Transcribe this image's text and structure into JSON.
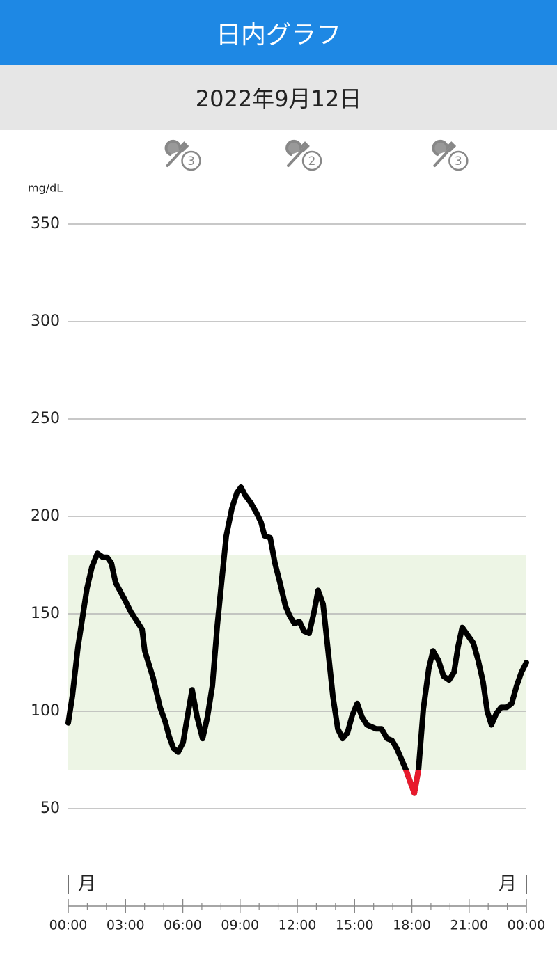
{
  "header": {
    "title": "日内グラフ",
    "date": "2022年9月12日"
  },
  "chart_data": {
    "type": "line",
    "y_label": "mg/dL",
    "x": [
      0,
      0.22,
      0.51,
      0.98,
      1.24,
      1.53,
      1.82,
      2.04,
      2.26,
      2.48,
      2.92,
      3.28,
      3.61,
      3.87,
      4.01,
      4.45,
      4.81,
      5.07,
      5.29,
      5.51,
      5.76,
      6.02,
      6.24,
      6.49,
      6.75,
      7.04,
      7.29,
      7.55,
      7.81,
      8.02,
      8.28,
      8.57,
      8.83,
      9.05,
      9.26,
      9.56,
      9.85,
      10.1,
      10.29,
      10.58,
      10.83,
      11.09,
      11.38,
      11.6,
      11.85,
      12.11,
      12.36,
      12.62,
      12.88,
      13.09,
      13.35,
      13.57,
      13.86,
      14.12,
      14.37,
      14.63,
      14.88,
      15.14,
      15.39,
      15.65,
      16.12,
      16.41,
      16.7,
      16.96,
      17.21,
      17.47,
      17.69,
      17.94,
      18.13,
      18.35,
      18.6,
      18.89,
      19.11,
      19.4,
      19.66,
      19.95,
      20.21,
      20.42,
      20.64,
      20.93,
      21.22,
      21.48,
      21.73,
      21.95,
      22.17,
      22.43,
      22.68,
      22.97,
      23.23,
      23.49,
      23.74,
      24
    ],
    "values": [
      94,
      108,
      133,
      163,
      174,
      181,
      179,
      179,
      176,
      166,
      158,
      151,
      146,
      142,
      131,
      117,
      102,
      95,
      87,
      81,
      79,
      84,
      97,
      111,
      97,
      86,
      97,
      113,
      144,
      165,
      190,
      204,
      212,
      215,
      211,
      207,
      202,
      197,
      190,
      189,
      176,
      166,
      154,
      149,
      145,
      146,
      141,
      140,
      151,
      162,
      155,
      135,
      108,
      91,
      86,
      89,
      98,
      104,
      97,
      93,
      91,
      91,
      86,
      85,
      81,
      75,
      70,
      63,
      58,
      70,
      101,
      122,
      131,
      126,
      118,
      116,
      120,
      133,
      143,
      139,
      135,
      126,
      115,
      100,
      93,
      99,
      102,
      102,
      104,
      113,
      120,
      125
    ],
    "color": "#000000",
    "low_color": "#e8192c",
    "target_range": [
      70,
      180
    ],
    "target_color": "#edf5e5",
    "ylim": [
      50,
      350
    ],
    "yticks": [
      50,
      100,
      150,
      200,
      250,
      300,
      350
    ],
    "grid": true,
    "xlim": [
      0,
      24
    ],
    "xticks": [
      {
        "value": 0,
        "label": "00:00"
      },
      {
        "value": 3,
        "label": "03:00"
      },
      {
        "value": 6,
        "label": "06:00"
      },
      {
        "value": 9,
        "label": "09:00"
      },
      {
        "value": 12,
        "label": "12:00"
      },
      {
        "value": 15,
        "label": "15:00"
      },
      {
        "value": 18,
        "label": "18:00"
      },
      {
        "value": 21,
        "label": "21:00"
      },
      {
        "value": 24,
        "label": "00:00"
      }
    ],
    "xminor_ticks": [
      1,
      2,
      4,
      5,
      7,
      8,
      10,
      11,
      13,
      14,
      16,
      17,
      19,
      20,
      22,
      23
    ],
    "events": [
      {
        "x": 6,
        "label": "3"
      },
      {
        "x": 12.33,
        "label": "2"
      },
      {
        "x": 20,
        "label": "3"
      }
    ],
    "markers": [
      {
        "x": 0,
        "label": "月"
      },
      {
        "x": 24,
        "label": "月"
      }
    ]
  }
}
